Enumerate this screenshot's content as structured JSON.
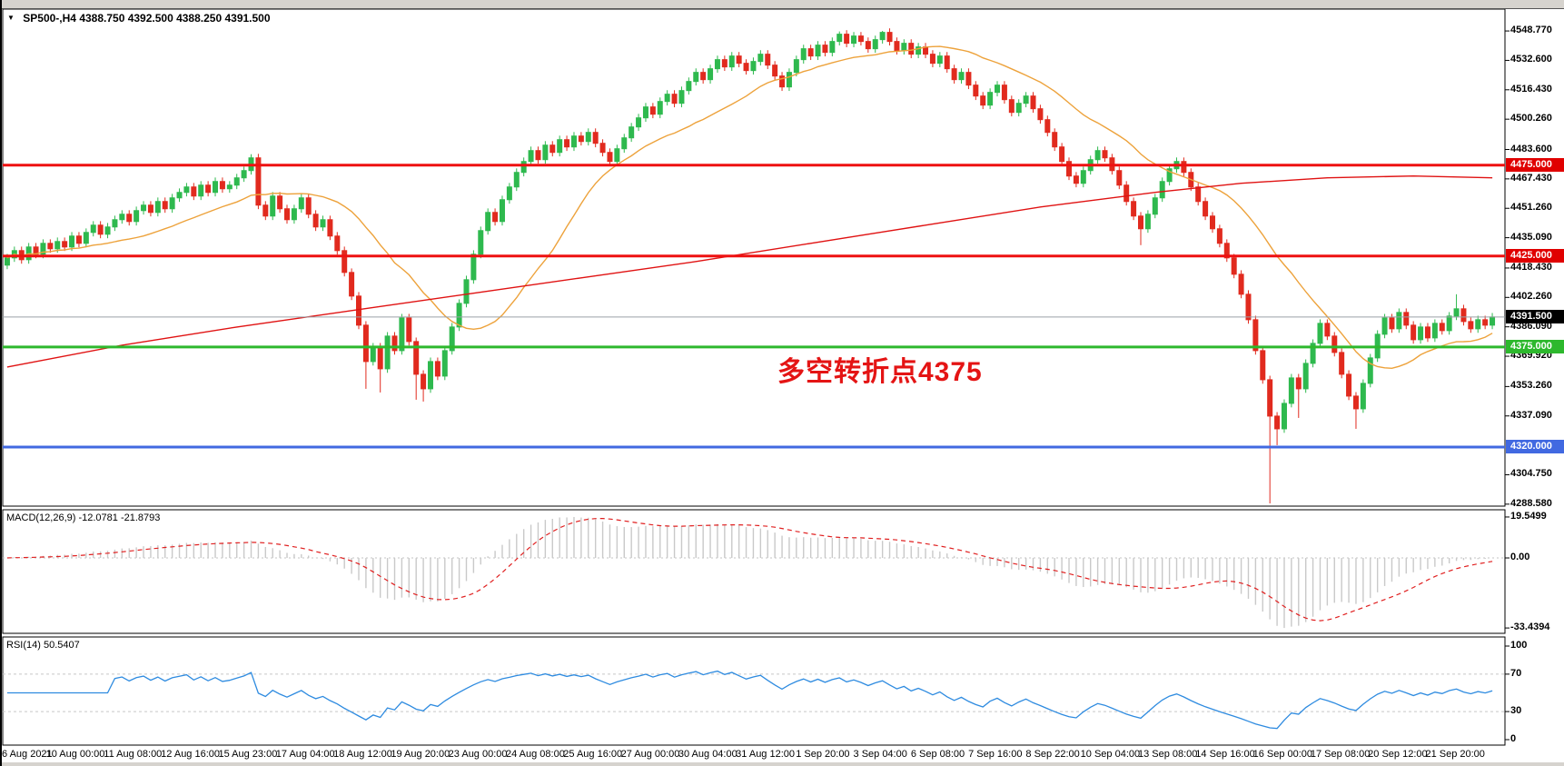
{
  "header": {
    "dropdown_glyph": "▼",
    "symbol": "SP500-,H4",
    "ohlc": "4388.750 4392.500 4388.250 4391.500"
  },
  "indicators": {
    "macd": {
      "label": "MACD(12,26,9) -12.0781 -21.8793",
      "params": "12,26,9",
      "value": -12.0781,
      "signal": -21.8793,
      "axis_labels": [
        "19.5499",
        "0.00",
        "-33.4394"
      ],
      "axis_values": [
        19.5499,
        0,
        -33.4394
      ]
    },
    "rsi": {
      "label": "RSI(14) 50.5407",
      "period": 14,
      "value": 50.5407,
      "axis_labels": [
        "100",
        "70",
        "30",
        "0"
      ],
      "axis_values": [
        100,
        70,
        30,
        0
      ],
      "level_lines": [
        70,
        30
      ]
    }
  },
  "annotation": {
    "text": "多空转折点4375",
    "color": "#e41414"
  },
  "chart_data": {
    "type": "candlestick",
    "symbol": "SP500-",
    "timeframe": "H4",
    "title": "SP500-,H4 4388.750 4392.500 4388.250 4391.500",
    "ohlc_current": {
      "open": 4388.75,
      "high": 4392.5,
      "low": 4388.25,
      "close": 4391.5
    },
    "ylim": [
      4287.5,
      4558.8
    ],
    "price_ticks": [
      {
        "label": "4548.770",
        "value": 4548.77
      },
      {
        "label": "4532.600",
        "value": 4532.6
      },
      {
        "label": "4516.430",
        "value": 4516.43
      },
      {
        "label": "4500.260",
        "value": 4500.26
      },
      {
        "label": "4483.600",
        "value": 4483.6
      },
      {
        "label": "4467.430",
        "value": 4467.43
      },
      {
        "label": "4451.260",
        "value": 4451.26
      },
      {
        "label": "4435.090",
        "value": 4435.09
      },
      {
        "label": "4418.430",
        "value": 4418.43
      },
      {
        "label": "4402.260",
        "value": 4402.26
      },
      {
        "label": "4386.090",
        "value": 4386.09
      },
      {
        "label": "4369.920",
        "value": 4369.92
      },
      {
        "label": "4353.260",
        "value": 4353.26
      },
      {
        "label": "4337.090",
        "value": 4337.09
      },
      {
        "label": "4304.750",
        "value": 4304.75
      },
      {
        "label": "4288.580",
        "value": 4288.58
      }
    ],
    "hlines": [
      {
        "label": "4475.000",
        "value": 4475.0,
        "color": "#ee1111",
        "label_bg": "#e00000",
        "width": 3
      },
      {
        "label": "4425.000",
        "value": 4425.0,
        "color": "#ee1111",
        "label_bg": "#e00000",
        "width": 3
      },
      {
        "label": "4391.500",
        "value": 4391.5,
        "color": "#9aa0a6",
        "label_bg": "#000000",
        "width": 1
      },
      {
        "label": "4375.000",
        "value": 4375.0,
        "color": "#2db82d",
        "label_bg": "#2db82d",
        "width": 3
      },
      {
        "label": "4320.000",
        "value": 4320.0,
        "color": "#4169e1",
        "label_bg": "#4169e1",
        "width": 3
      }
    ],
    "x_labels": [
      "6 Aug 2021",
      "10 Aug 00:00",
      "11 Aug 08:00",
      "12 Aug 16:00",
      "15 Aug 23:00",
      "17 Aug 04:00",
      "18 Aug 12:00",
      "19 Aug 20:00",
      "23 Aug 00:00",
      "24 Aug 08:00",
      "25 Aug 16:00",
      "27 Aug 00:00",
      "30 Aug 04:00",
      "31 Aug 12:00",
      "1 Sep 20:00",
      "3 Sep 04:00",
      "6 Sep 08:00",
      "7 Sep 16:00",
      "8 Sep 22:00",
      "10 Sep 04:00",
      "13 Sep 08:00",
      "14 Sep 16:00",
      "16 Sep 00:00",
      "17 Sep 08:00",
      "20 Sep 12:00",
      "21 Sep 20:00"
    ],
    "candles": {
      "open_first": 4420,
      "default_wick": 2.2,
      "closes": [
        4424,
        4428,
        4423,
        4430,
        4426,
        4432,
        4429,
        4433,
        4430,
        4436,
        4432,
        4438,
        4442,
        4437,
        4441,
        4445,
        4448,
        4444,
        4450,
        4453,
        4449,
        4455,
        4451,
        4457,
        4460,
        4463,
        4458,
        4464,
        4460,
        4466,
        4462,
        4464,
        4468,
        4472,
        4479,
        4453,
        4447,
        4458,
        4451,
        4445,
        4451,
        4457,
        4448,
        4441,
        4445,
        4436,
        4428,
        4416,
        4403,
        4387,
        4367,
        4375,
        4363,
        4381,
        4373,
        4391,
        4378,
        4360,
        4352,
        4367,
        4359,
        4373,
        4386,
        4399,
        4412,
        4426,
        4439,
        4449,
        4444,
        4456,
        4463,
        4471,
        4477,
        4483,
        4478,
        4486,
        4482,
        4489,
        4485,
        4491,
        4488,
        4493,
        4487,
        4482,
        4477,
        4484,
        4490,
        4496,
        4501,
        4507,
        4503,
        4510,
        4514,
        4509,
        4516,
        4521,
        4526,
        4522,
        4528,
        4533,
        4529,
        4535,
        4531,
        4527,
        4532,
        4536,
        4530,
        4524,
        4518,
        4526,
        4533,
        4539,
        4535,
        4541,
        4537,
        4543,
        4547,
        4542,
        4546,
        4543,
        4539,
        4544,
        4548,
        4543,
        4538,
        4542,
        4536,
        4540,
        4536,
        4531,
        4535,
        4528,
        4522,
        4526,
        4519,
        4513,
        4508,
        4515,
        4519,
        4511,
        4504,
        4509,
        4513,
        4506,
        4500,
        4493,
        4485,
        4477,
        4469,
        4465,
        4472,
        4478,
        4483,
        4479,
        4472,
        4464,
        4455,
        4447,
        4440,
        4448,
        4457,
        4466,
        4473,
        4477,
        4471,
        4463,
        4455,
        4447,
        4440,
        4432,
        4424,
        4415,
        4404,
        4390,
        4373,
        4357,
        4337,
        4330,
        4344,
        4358,
        4352,
        4366,
        4377,
        4388,
        4381,
        4372,
        4360,
        4348,
        4341,
        4355,
        4369,
        4382,
        4391,
        4385,
        4394,
        4387,
        4379,
        4386,
        4380,
        4388,
        4384,
        4392,
        4396,
        4389,
        4385,
        4390,
        4387,
        4391.5
      ],
      "wick_overrides": {
        "34": [
          4481,
          null
        ],
        "50": [
          null,
          4352
        ],
        "52": [
          null,
          4350
        ],
        "57": [
          null,
          4346
        ],
        "58": [
          null,
          4345
        ],
        "116": [
          4548.5,
          null
        ],
        "122": [
          4548.8,
          null
        ],
        "158": [
          null,
          4431
        ],
        "176": [
          null,
          4289
        ],
        "177": [
          null,
          4321
        ],
        "180": [
          null,
          4336
        ],
        "188": [
          null,
          4330
        ],
        "202": [
          4404,
          null
        ]
      }
    },
    "ma_fast": {
      "type": "SMA",
      "period": 20,
      "color": "#eda23b"
    },
    "ma_slow": {
      "color": "#e01212",
      "anchors": [
        [
          0,
          4364
        ],
        [
          16,
          4376
        ],
        [
          32,
          4386
        ],
        [
          48,
          4395
        ],
        [
          64,
          4404
        ],
        [
          80,
          4413
        ],
        [
          96,
          4422
        ],
        [
          112,
          4432
        ],
        [
          128,
          4442
        ],
        [
          144,
          4452
        ],
        [
          160,
          4460
        ],
        [
          172,
          4465
        ],
        [
          184,
          4468
        ],
        [
          196,
          4469
        ],
        [
          207,
          4468
        ]
      ]
    },
    "macd_scale": {
      "axis_max": 23,
      "axis_min": -36,
      "hist_max": 19.5499,
      "hist_min": -33.4394
    },
    "colors": {
      "up": "#2eb94e",
      "down": "#e12a1e",
      "macd_hist": "#c9c9c9",
      "macd_signal": "#e02020",
      "rsi": "#2e8be0",
      "grid_dash": "#c6c6c6",
      "current_price_line": "#999999"
    }
  }
}
